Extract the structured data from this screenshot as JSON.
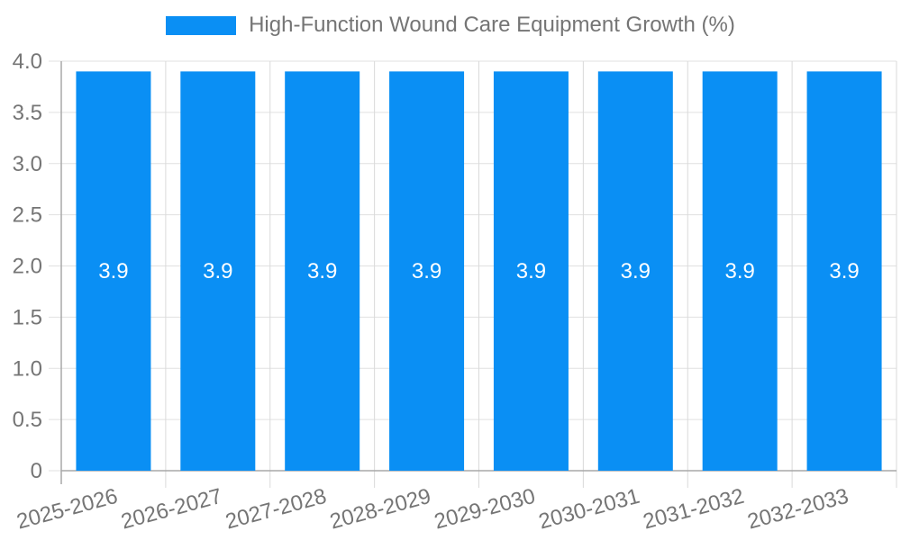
{
  "legend": {
    "label": "High-Function Wound Care Equipment Growth (%)"
  },
  "colors": {
    "bar": "#0a8ff4",
    "grid": "#e0e0e0",
    "boundary": "#dadada",
    "axis": "#a8a8a8",
    "tick_text": "#757575",
    "value_text": "#ffffff",
    "legend_text": "#757575",
    "background": "#ffffff"
  },
  "chart_data": {
    "type": "bar",
    "title": "",
    "xlabel": "",
    "ylabel": "",
    "categories": [
      "2025-2026",
      "2026-2027",
      "2027-2028",
      "2028-2029",
      "2029-2030",
      "2030-2031",
      "2031-2032",
      "2032-2033"
    ],
    "series": [
      {
        "name": "High-Function Wound Care Equipment Growth (%)",
        "values": [
          3.9,
          3.9,
          3.9,
          3.9,
          3.9,
          3.9,
          3.9,
          3.9
        ]
      }
    ],
    "value_labels": [
      "3.9",
      "3.9",
      "3.9",
      "3.9",
      "3.9",
      "3.9",
      "3.9",
      "3.9"
    ],
    "ylim": [
      0,
      4
    ],
    "ytick_values": [
      0,
      0.5,
      1,
      1.5,
      2,
      2.5,
      3,
      3.5,
      4
    ],
    "ytick_labels": [
      "0",
      "0.5",
      "1.0",
      "1.5",
      "2.0",
      "2.5",
      "3.0",
      "3.5",
      "4.0"
    ],
    "grid": true,
    "legend_position": "top-center",
    "x_label_rotation_deg": -15
  }
}
